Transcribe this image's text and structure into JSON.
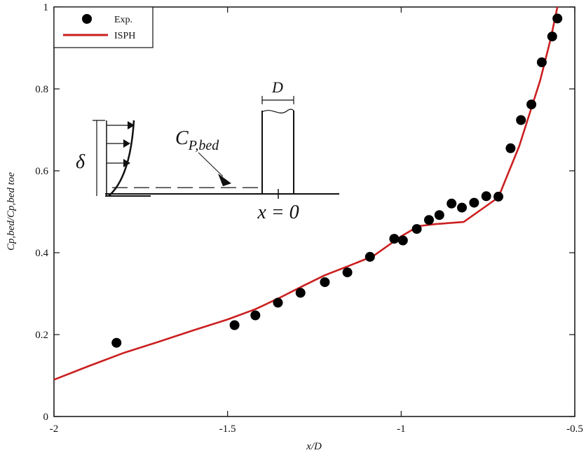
{
  "chart_data": {
    "type": "line",
    "xlabel": "x/D",
    "ylabel": "Cp,bed/Cp,bed toe",
    "xlim": [
      -2,
      -0.5
    ],
    "ylim": [
      0,
      1
    ],
    "x_ticks": [
      -2,
      -1.5,
      -1,
      -0.5
    ],
    "y_ticks": [
      0,
      0.2,
      0.4,
      0.6,
      0.8,
      1
    ],
    "x_tick_labels": [
      "-2",
      "-1.5",
      "-1",
      "-0.5"
    ],
    "y_tick_labels": [
      "0",
      "0.2",
      "0.4",
      "0.6",
      "0.8",
      "1"
    ],
    "grid": false,
    "legend_position": "top-left",
    "series": [
      {
        "name": "Exp.",
        "kind": "scatter",
        "color": "#000000",
        "points": [
          [
            -1.82,
            0.18
          ],
          [
            -1.48,
            0.223
          ],
          [
            -1.42,
            0.247
          ],
          [
            -1.355,
            0.278
          ],
          [
            -1.29,
            0.302
          ],
          [
            -1.22,
            0.328
          ],
          [
            -1.155,
            0.352
          ],
          [
            -1.09,
            0.39
          ],
          [
            -1.02,
            0.434
          ],
          [
            -0.995,
            0.43
          ],
          [
            -0.955,
            0.458
          ],
          [
            -0.92,
            0.48
          ],
          [
            -0.89,
            0.492
          ],
          [
            -0.855,
            0.52
          ],
          [
            -0.825,
            0.51
          ],
          [
            -0.79,
            0.522
          ],
          [
            -0.755,
            0.538
          ],
          [
            -0.72,
            0.537
          ],
          [
            -0.685,
            0.655
          ],
          [
            -0.655,
            0.724
          ],
          [
            -0.625,
            0.762
          ],
          [
            -0.595,
            0.865
          ],
          [
            -0.565,
            0.928
          ],
          [
            -0.55,
            0.972
          ]
        ]
      },
      {
        "name": "ISPH",
        "kind": "line",
        "color": "#cc1f1f",
        "points": [
          [
            -2.0,
            0.09
          ],
          [
            -1.9,
            0.123
          ],
          [
            -1.8,
            0.155
          ],
          [
            -1.7,
            0.182
          ],
          [
            -1.6,
            0.21
          ],
          [
            -1.5,
            0.237
          ],
          [
            -1.42,
            0.262
          ],
          [
            -1.35,
            0.29
          ],
          [
            -1.28,
            0.32
          ],
          [
            -1.22,
            0.345
          ],
          [
            -1.15,
            0.368
          ],
          [
            -1.08,
            0.392
          ],
          [
            -1.0,
            0.44
          ],
          [
            -0.95,
            0.465
          ],
          [
            -0.9,
            0.47
          ],
          [
            -0.82,
            0.475
          ],
          [
            -0.72,
            0.535
          ],
          [
            -0.66,
            0.66
          ],
          [
            -0.6,
            0.82
          ],
          [
            -0.57,
            0.92
          ],
          [
            -0.55,
            1.0
          ]
        ]
      }
    ],
    "inset": {
      "labels": {
        "delta": "δ",
        "cp_bed": "C",
        "cp_bed_sub": "P,bed",
        "d": "D",
        "x0": "x = 0"
      }
    }
  }
}
